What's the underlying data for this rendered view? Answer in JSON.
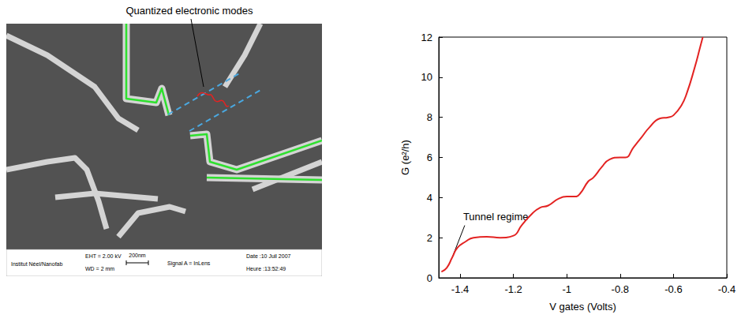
{
  "image_panel": {
    "annotation": "Quantized electronic modes",
    "info_bar": {
      "institute": "Institut Néel/Nanofab",
      "eht": "EHT = 2.00 kV",
      "wd": "WD = 2 mm",
      "scale_bar": "200nm",
      "signal": "Signal A = InLens",
      "date": "Date :10 Juil 2007",
      "time": "Heure :13:52:49"
    }
  },
  "chart_data": {
    "type": "line",
    "x_label": "V gates (Volts)",
    "y_label": "G (e²/h)",
    "annotation": "Tunnel regime",
    "x": [
      -1.47,
      -1.45,
      -1.43,
      -1.41,
      -1.38,
      -1.35,
      -1.3,
      -1.25,
      -1.2,
      -1.17,
      -1.13,
      -1.1,
      -1.07,
      -1.03,
      -1.0,
      -0.97,
      -0.95,
      -0.92,
      -0.9,
      -0.87,
      -0.84,
      -0.8,
      -0.78,
      -0.75,
      -0.72,
      -0.69,
      -0.65,
      -0.62,
      -0.6,
      -0.57,
      -0.55,
      -0.52,
      -0.5,
      -0.49
    ],
    "values": [
      0.3,
      0.5,
      1.0,
      1.5,
      1.8,
      2.0,
      2.05,
      2.0,
      2.1,
      2.6,
      3.2,
      3.5,
      3.6,
      3.95,
      4.05,
      4.05,
      4.2,
      4.8,
      5.0,
      5.5,
      5.9,
      6.0,
      6.0,
      6.5,
      7.0,
      7.5,
      7.95,
      8.0,
      8.1,
      8.6,
      9.2,
      10.5,
      11.5,
      12.0
    ],
    "color": "#e32322",
    "xlim": [
      -1.48,
      -0.4
    ],
    "xticks": [
      -1.4,
      -1.2,
      -1,
      -0.8,
      -0.6,
      -0.4
    ],
    "ylim": [
      0,
      12
    ],
    "yticks": [
      0,
      2,
      4,
      6,
      8,
      10,
      12
    ],
    "grid": false
  }
}
